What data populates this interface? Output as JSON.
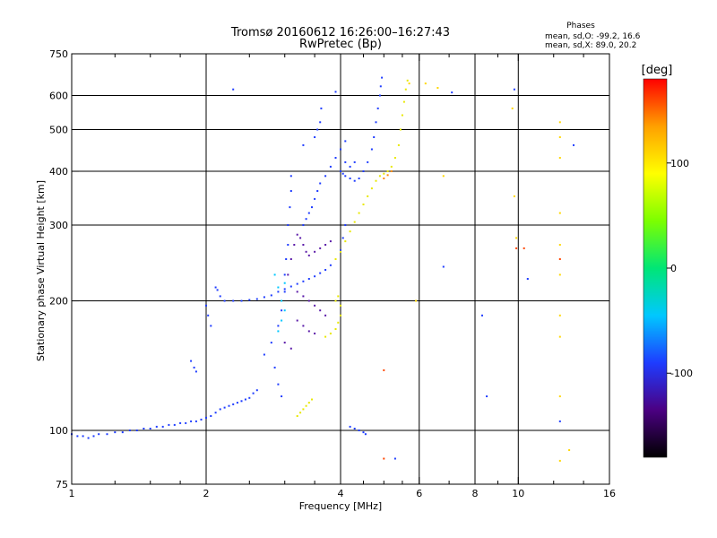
{
  "header": {
    "title": "Tromsø 20160612 16:26:00–16:27:43",
    "subtitle": "RwPretec (Bp)",
    "phases_title": "Phases",
    "phases_o": "mean, sd,O: -99.2, 16.6",
    "phases_x": "mean, sd,X:  89.0, 20.2"
  },
  "chart_data": {
    "type": "scatter",
    "xlabel": "Frequency [MHz]",
    "ylabel": "Stationary phase Virtual Height [km]",
    "x_scale": "log",
    "y_scale": "log",
    "xlim": [
      1,
      16
    ],
    "ylim": [
      75,
      750
    ],
    "x_ticks": [
      1,
      2,
      4,
      6,
      8,
      10,
      16
    ],
    "x_tick_labels": [
      "1",
      "2",
      "4",
      "6",
      "8",
      "10",
      "16"
    ],
    "x_minor_ticks": [
      1.25,
      1.5,
      1.75,
      2.5,
      3,
      3.5,
      4.5,
      5,
      5.5,
      7,
      9,
      12,
      14
    ],
    "y_ticks": [
      75,
      100,
      200,
      300,
      400,
      500,
      600,
      750
    ],
    "y_tick_labels": [
      "75",
      "100",
      "200",
      "300",
      "400",
      "500",
      "600",
      "750"
    ],
    "grid": true,
    "colorbar": {
      "label": "[deg]",
      "ticks": [
        100,
        0,
        -100
      ],
      "tick_labels": [
        "100",
        "0",
        "-100"
      ],
      "range": [
        -180,
        180
      ],
      "colors": [
        "#000000",
        "#4b0082",
        "#1e3cff",
        "#00c8ff",
        "#00e676",
        "#7cff00",
        "#ffff00",
        "#ffa000",
        "#ff0000"
      ]
    },
    "series": [
      {
        "color": "#1e3cff",
        "points": [
          [
            1.0,
            98
          ],
          [
            1.03,
            97
          ],
          [
            1.06,
            97
          ],
          [
            1.09,
            96
          ],
          [
            1.12,
            97
          ],
          [
            1.15,
            98
          ],
          [
            1.2,
            98
          ],
          [
            1.25,
            99
          ],
          [
            1.3,
            99
          ],
          [
            1.35,
            100
          ],
          [
            1.4,
            100
          ],
          [
            1.45,
            101
          ],
          [
            1.5,
            101
          ],
          [
            1.55,
            102
          ],
          [
            1.6,
            102
          ],
          [
            1.65,
            103
          ],
          [
            1.7,
            103
          ],
          [
            1.75,
            104
          ],
          [
            1.8,
            104
          ],
          [
            1.85,
            105
          ],
          [
            1.9,
            105
          ],
          [
            1.95,
            106
          ],
          [
            2.0,
            107
          ],
          [
            2.05,
            108
          ],
          [
            2.1,
            110
          ],
          [
            2.15,
            112
          ],
          [
            2.2,
            113
          ],
          [
            2.25,
            114
          ],
          [
            2.3,
            115
          ],
          [
            2.35,
            116
          ],
          [
            2.4,
            117
          ],
          [
            2.45,
            118
          ],
          [
            2.5,
            119
          ],
          [
            2.55,
            122
          ],
          [
            2.6,
            124
          ]
        ]
      },
      {
        "color": "#1e3cff",
        "points": [
          [
            1.85,
            145
          ],
          [
            1.88,
            140
          ],
          [
            1.9,
            137
          ],
          [
            2.0,
            195
          ],
          [
            2.02,
            185
          ],
          [
            2.05,
            175
          ],
          [
            2.1,
            215
          ],
          [
            2.12,
            212
          ],
          [
            2.15,
            205
          ],
          [
            2.2,
            200
          ],
          [
            2.3,
            200
          ],
          [
            2.4,
            200
          ],
          [
            2.5,
            201
          ],
          [
            2.6,
            202
          ],
          [
            2.7,
            204
          ],
          [
            2.8,
            206
          ],
          [
            2.9,
            210
          ],
          [
            3.0,
            213
          ],
          [
            3.1,
            216
          ],
          [
            3.2,
            219
          ],
          [
            3.3,
            222
          ],
          [
            3.4,
            225
          ],
          [
            3.5,
            228
          ],
          [
            3.6,
            232
          ],
          [
            3.7,
            236
          ],
          [
            3.8,
            242
          ],
          [
            3.9,
            250
          ],
          [
            4.0,
            262
          ],
          [
            4.05,
            280
          ],
          [
            4.1,
            300
          ]
        ]
      },
      {
        "color": "#1e3cff",
        "points": [
          [
            2.7,
            150
          ],
          [
            2.8,
            160
          ],
          [
            2.9,
            175
          ],
          [
            2.95,
            190
          ],
          [
            3.0,
            210
          ],
          [
            3.0,
            230
          ],
          [
            3.02,
            250
          ],
          [
            3.05,
            270
          ],
          [
            3.05,
            300
          ],
          [
            3.08,
            330
          ],
          [
            3.1,
            360
          ],
          [
            3.1,
            390
          ],
          [
            2.85,
            140
          ],
          [
            2.9,
            128
          ],
          [
            2.95,
            120
          ]
        ]
      },
      {
        "color": "#1e3cff",
        "points": [
          [
            3.3,
            300
          ],
          [
            3.35,
            310
          ],
          [
            3.4,
            320
          ],
          [
            3.45,
            330
          ],
          [
            3.5,
            345
          ],
          [
            3.55,
            360
          ],
          [
            3.6,
            375
          ],
          [
            3.7,
            390
          ],
          [
            3.8,
            410
          ],
          [
            3.9,
            430
          ],
          [
            4.0,
            450
          ],
          [
            4.1,
            470
          ],
          [
            3.5,
            480
          ],
          [
            3.55,
            500
          ],
          [
            3.6,
            520
          ],
          [
            3.62,
            560
          ]
        ]
      },
      {
        "color": "#1e3cff",
        "points": [
          [
            4.0,
            400
          ],
          [
            4.05,
            395
          ],
          [
            4.1,
            390
          ],
          [
            4.2,
            385
          ],
          [
            4.3,
            380
          ],
          [
            4.4,
            385
          ],
          [
            4.5,
            400
          ],
          [
            4.6,
            420
          ],
          [
            4.7,
            450
          ],
          [
            4.75,
            480
          ],
          [
            4.8,
            520
          ],
          [
            4.85,
            560
          ],
          [
            4.9,
            600
          ],
          [
            4.92,
            630
          ],
          [
            4.95,
            660
          ],
          [
            4.1,
            420
          ],
          [
            4.2,
            410
          ],
          [
            4.3,
            420
          ]
        ]
      },
      {
        "color": "#1e3cff",
        "points": [
          [
            4.2,
            102
          ],
          [
            4.3,
            101
          ],
          [
            4.4,
            100
          ],
          [
            4.5,
            99
          ],
          [
            4.55,
            98
          ]
        ]
      },
      {
        "color": "#5a1aa8",
        "points": [
          [
            3.05,
            230
          ],
          [
            3.1,
            250
          ],
          [
            3.15,
            270
          ],
          [
            3.2,
            285
          ],
          [
            3.25,
            280
          ],
          [
            3.3,
            270
          ],
          [
            3.35,
            260
          ],
          [
            3.4,
            255
          ],
          [
            3.5,
            260
          ],
          [
            3.6,
            265
          ],
          [
            3.7,
            270
          ],
          [
            3.8,
            275
          ],
          [
            3.2,
            210
          ],
          [
            3.3,
            205
          ],
          [
            3.4,
            200
          ],
          [
            3.5,
            195
          ],
          [
            3.6,
            190
          ],
          [
            3.7,
            185
          ],
          [
            3.2,
            180
          ],
          [
            3.3,
            175
          ],
          [
            3.4,
            170
          ],
          [
            3.5,
            168
          ],
          [
            3.0,
            160
          ],
          [
            3.1,
            155
          ]
        ]
      },
      {
        "color": "#00c8ff",
        "points": [
          [
            2.9,
            170
          ],
          [
            2.95,
            180
          ],
          [
            3.0,
            190
          ],
          [
            3.0,
            220
          ],
          [
            2.85,
            230
          ],
          [
            2.9,
            215
          ],
          [
            2.95,
            200
          ]
        ]
      },
      {
        "color": "#e8e800",
        "points": [
          [
            3.7,
            165
          ],
          [
            3.8,
            168
          ],
          [
            3.9,
            172
          ],
          [
            3.95,
            178
          ],
          [
            4.0,
            185
          ],
          [
            4.0,
            195
          ],
          [
            3.9,
            200
          ],
          [
            3.95,
            205
          ],
          [
            3.2,
            108
          ],
          [
            3.25,
            110
          ],
          [
            3.3,
            112
          ],
          [
            3.35,
            114
          ],
          [
            3.4,
            116
          ],
          [
            3.45,
            118
          ]
        ]
      },
      {
        "color": "#e8e800",
        "points": [
          [
            3.9,
            250
          ],
          [
            4.0,
            260
          ],
          [
            4.1,
            275
          ],
          [
            4.2,
            290
          ],
          [
            4.3,
            305
          ],
          [
            4.4,
            320
          ],
          [
            4.5,
            335
          ],
          [
            4.6,
            350
          ],
          [
            4.7,
            365
          ],
          [
            4.8,
            380
          ],
          [
            4.9,
            390
          ],
          [
            5.0,
            395
          ],
          [
            5.1,
            400
          ],
          [
            5.2,
            410
          ],
          [
            5.3,
            430
          ],
          [
            5.4,
            460
          ],
          [
            5.45,
            500
          ],
          [
            5.5,
            540
          ],
          [
            5.55,
            580
          ],
          [
            5.6,
            620
          ],
          [
            5.65,
            650
          ]
        ]
      },
      {
        "color": "#ff8c00",
        "points": [
          [
            5.0,
            385
          ],
          [
            5.1,
            392
          ],
          [
            5.2,
            400
          ]
        ]
      },
      {
        "color": "#ffd700",
        "points": [
          [
            5.7,
            640
          ],
          [
            6.2,
            640
          ],
          [
            6.6,
            625
          ],
          [
            9.7,
            560
          ],
          [
            9.8,
            350
          ],
          [
            12.4,
            520
          ],
          [
            12.4,
            480
          ],
          [
            12.4,
            430
          ],
          [
            12.4,
            320
          ],
          [
            12.4,
            270
          ],
          [
            12.4,
            230
          ],
          [
            12.4,
            185
          ],
          [
            12.4,
            165
          ],
          [
            12.4,
            120
          ],
          [
            12.4,
            85
          ],
          [
            13.0,
            90
          ],
          [
            9.9,
            280
          ],
          [
            6.8,
            390
          ],
          [
            5.9,
            200
          ]
        ]
      },
      {
        "color": "#1e3cff",
        "points": [
          [
            2.3,
            620
          ],
          [
            3.3,
            460
          ],
          [
            3.9,
            612
          ],
          [
            6.8,
            240
          ],
          [
            7.1,
            610
          ],
          [
            8.3,
            185
          ],
          [
            8.5,
            120
          ],
          [
            9.8,
            620
          ],
          [
            10.5,
            225
          ],
          [
            12.4,
            105
          ],
          [
            13.3,
            460
          ],
          [
            5.3,
            86
          ]
        ]
      },
      {
        "color": "#ff4500",
        "points": [
          [
            5.0,
            138
          ],
          [
            5.0,
            86
          ],
          [
            10.3,
            265
          ],
          [
            12.4,
            250
          ],
          [
            9.9,
            265
          ]
        ]
      }
    ]
  }
}
